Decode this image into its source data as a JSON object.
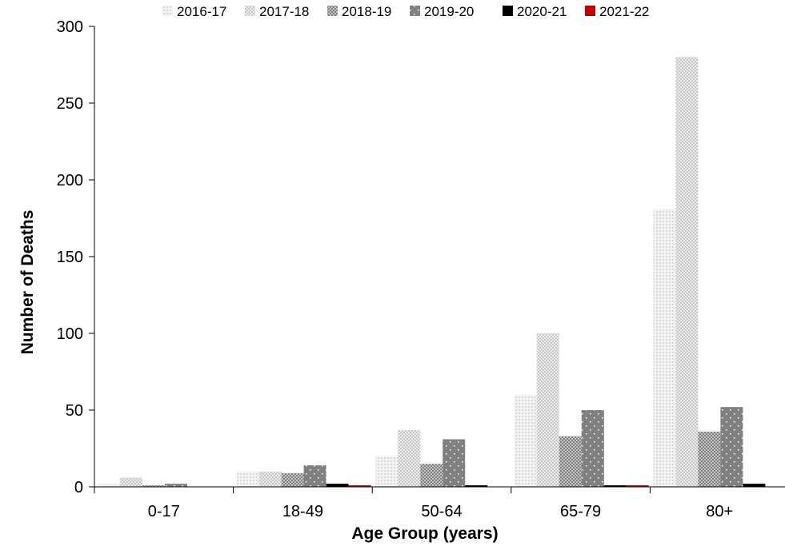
{
  "chart_data": {
    "type": "bar",
    "xlabel": "Age Group (years)",
    "ylabel": "Number of Deaths",
    "ylim": [
      0,
      300
    ],
    "yticks": [
      0,
      50,
      100,
      150,
      200,
      250,
      300
    ],
    "categories": [
      "0-17",
      "18-49",
      "50-64",
      "65-79",
      "80+"
    ],
    "legend_position": "top",
    "grid": false,
    "series": [
      {
        "name": "2016-17",
        "color": "#e8e8e8",
        "pattern": "light-dots",
        "values": [
          2,
          10,
          20,
          60,
          181
        ]
      },
      {
        "name": "2017-18",
        "color": "#dcdcdc",
        "pattern": "light-checker",
        "values": [
          6,
          10,
          37,
          100,
          280
        ]
      },
      {
        "name": "2018-19",
        "color": "#a8a8a8",
        "pattern": "dark-checker",
        "values": [
          1,
          9,
          15,
          33,
          36
        ]
      },
      {
        "name": "2019-20",
        "color": "#808080",
        "pattern": "solid-dots",
        "values": [
          2,
          14,
          31,
          50,
          52
        ]
      },
      {
        "name": "2020-21",
        "color": "#000000",
        "pattern": "solid",
        "values": [
          0,
          2,
          1,
          1,
          2
        ]
      },
      {
        "name": "2021-22",
        "color": "#c00000",
        "pattern": "solid",
        "values": [
          0,
          1,
          0,
          1,
          0
        ]
      }
    ]
  }
}
